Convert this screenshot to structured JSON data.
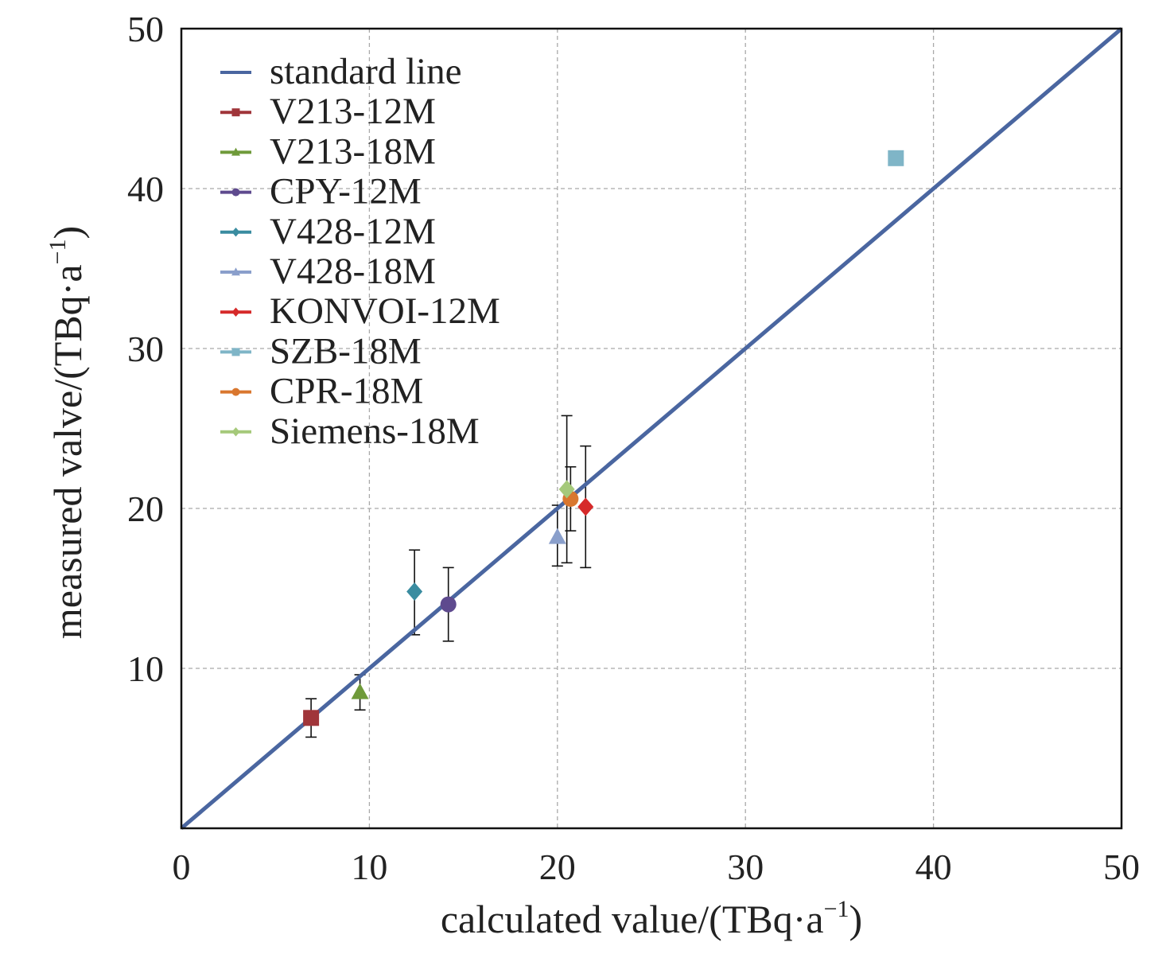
{
  "chart_data": {
    "type": "scatter",
    "xlabel": "calculated value/(TBq·a",
    "xlabel_unit_superscript": "−1",
    "ylabel": "measured valve/(TBq·a",
    "ylabel_unit_superscript": "−1",
    "xlim": [
      0,
      50
    ],
    "ylim": [
      0,
      50
    ],
    "x_ticks": [
      "0",
      "10",
      "20",
      "30",
      "40",
      "50"
    ],
    "y_ticks": [
      "10",
      "20",
      "30",
      "40",
      "50"
    ],
    "grid": true,
    "legend_position": "top-left",
    "reference_line": {
      "name": "standard line",
      "x": [
        0,
        50
      ],
      "y": [
        0,
        50
      ],
      "color": "#4a66a0"
    },
    "series": [
      {
        "name": "V213-12M",
        "marker": "square",
        "color": "#a0353a",
        "x": 6.9,
        "y": 6.9,
        "err_low": 5.7,
        "err_high": 8.1
      },
      {
        "name": "V213-18M",
        "marker": "triangle",
        "color": "#6f9a3a",
        "x": 9.5,
        "y": 8.5,
        "err_low": 7.4,
        "err_high": 9.6
      },
      {
        "name": "CPY-12M",
        "marker": "circle",
        "color": "#5e4a8e",
        "x": 14.2,
        "y": 14.0,
        "err_low": 11.7,
        "err_high": 16.3
      },
      {
        "name": "V428-12M",
        "marker": "diamond",
        "color": "#3a8ca0",
        "x": 12.4,
        "y": 14.8,
        "err_low": 12.1,
        "err_high": 17.4
      },
      {
        "name": "V428-18M",
        "marker": "triangle",
        "color": "#8a9fcb",
        "x": 20.0,
        "y": 18.2,
        "err_low": 16.4,
        "err_high": 20.2
      },
      {
        "name": "KONVOI-12M",
        "marker": "diamond",
        "color": "#d62a2a",
        "x": 21.5,
        "y": 20.1,
        "err_low": 16.3,
        "err_high": 23.9
      },
      {
        "name": "SZB-18M",
        "marker": "square",
        "color": "#7fb5c7",
        "x": 38.0,
        "y": 41.9
      },
      {
        "name": "CPR-18M",
        "marker": "circle",
        "color": "#d9772f",
        "x": 20.7,
        "y": 20.6,
        "err_low": 18.6,
        "err_high": 22.6
      },
      {
        "name": "Siemens-18M",
        "marker": "diamond",
        "color": "#a5c97a",
        "x": 20.5,
        "y": 21.2,
        "err_low": 16.6,
        "err_high": 25.8
      }
    ]
  }
}
